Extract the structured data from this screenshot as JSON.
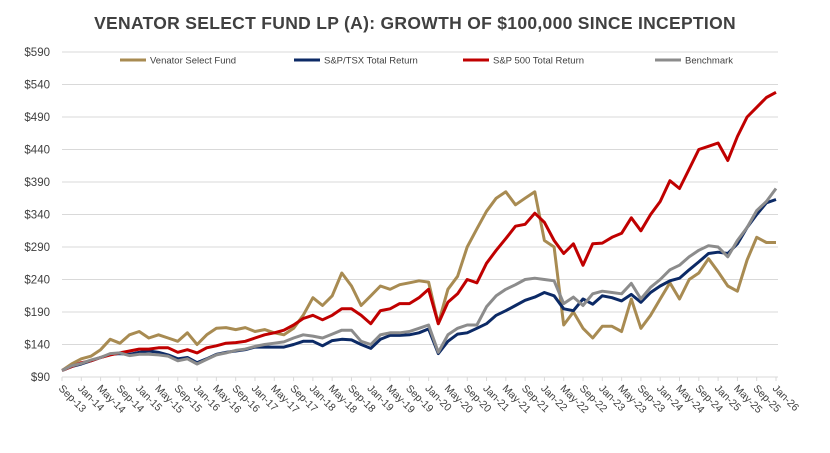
{
  "chart_data": {
    "type": "line",
    "title": "VENATOR SELECT FUND LP (A):  GROWTH OF $100,000 SINCE INCEPTION",
    "xlabel": "",
    "ylabel": "",
    "ylim": [
      90,
      590
    ],
    "y_ticks": [
      "$90",
      "$140",
      "$190",
      "$240",
      "$290",
      "$340",
      "$390",
      "$440",
      "$490",
      "$540",
      "$590"
    ],
    "y_tick_values": [
      90,
      140,
      190,
      240,
      290,
      340,
      390,
      440,
      490,
      540,
      590
    ],
    "x_tick_labels": [
      "Sep-13",
      "Jan-14",
      "May-14",
      "Sep-14",
      "Jan-15",
      "May-15",
      "Sep-15",
      "Jan-16",
      "May-16",
      "Sep-16",
      "Jan-17",
      "May-17",
      "Sep-17",
      "Jan-18",
      "May-18",
      "Sep-18",
      "Jan-19",
      "May-19",
      "Sep-19",
      "Jan-20",
      "May-20",
      "Sep-20",
      "Jan-21",
      "May-21",
      "Sep-21",
      "Jan-22",
      "May-22",
      "Sep-22",
      "Jan-23",
      "May-23",
      "Sep-23",
      "Jan-24",
      "May-24",
      "Sep-24",
      "Jan-25",
      "May-25",
      "Sep-25",
      "Jan-26"
    ],
    "x_interval_months": 2,
    "x_start": "Sep-13",
    "x_end": "Jan-26",
    "grid": "horizontal",
    "legend_position": "top",
    "series": [
      {
        "name": "Venator Select Fund",
        "color": "#A88B52",
        "values": [
          100,
          110,
          118,
          122,
          132,
          148,
          142,
          155,
          160,
          150,
          155,
          150,
          145,
          158,
          140,
          155,
          165,
          166,
          163,
          166,
          160,
          163,
          158,
          155,
          165,
          185,
          212,
          200,
          215,
          250,
          230,
          200,
          215,
          230,
          225,
          232,
          235,
          238,
          236,
          172,
          225,
          245,
          290,
          318,
          345,
          365,
          375,
          355,
          365,
          375,
          300,
          290,
          170,
          190,
          165,
          150,
          168,
          168,
          160,
          210,
          165,
          185,
          210,
          235,
          210,
          240,
          250,
          272,
          252,
          230,
          222,
          270,
          305,
          297,
          297
        ]
      },
      {
        "name": "S&P/TSX Total Return",
        "color": "#0C2A66",
        "values": [
          100,
          106,
          110,
          115,
          120,
          125,
          126,
          125,
          128,
          130,
          128,
          124,
          118,
          120,
          112,
          118,
          125,
          128,
          130,
          132,
          136,
          136,
          136,
          136,
          140,
          145,
          145,
          138,
          146,
          148,
          147,
          140,
          134,
          148,
          154,
          154,
          155,
          158,
          164,
          126,
          145,
          156,
          158,
          165,
          172,
          185,
          192,
          200,
          208,
          213,
          220,
          215,
          195,
          192,
          210,
          202,
          215,
          212,
          207,
          217,
          205,
          220,
          230,
          238,
          242,
          255,
          267,
          280,
          282,
          280,
          295,
          320,
          340,
          358,
          363
        ]
      },
      {
        "name": "S&P 500 Total Return",
        "color": "#C00000",
        "values": [
          100,
          106,
          112,
          115,
          120,
          124,
          127,
          130,
          133,
          133,
          135,
          135,
          128,
          132,
          127,
          135,
          138,
          142,
          143,
          145,
          150,
          155,
          158,
          162,
          170,
          180,
          185,
          178,
          185,
          195,
          195,
          185,
          172,
          192,
          195,
          203,
          203,
          212,
          225,
          172,
          205,
          218,
          240,
          235,
          265,
          285,
          303,
          322,
          325,
          342,
          328,
          300,
          280,
          295,
          262,
          295,
          296,
          305,
          311,
          335,
          315,
          340,
          360,
          392,
          380,
          410,
          440,
          445,
          450,
          423,
          460,
          490,
          505,
          520,
          528
        ]
      },
      {
        "name": "Benchmark",
        "color": "#8C8C8C",
        "values": [
          100,
          107,
          111,
          116,
          120,
          126,
          127,
          123,
          125,
          125,
          124,
          122,
          115,
          118,
          110,
          117,
          124,
          127,
          131,
          133,
          137,
          140,
          142,
          144,
          150,
          155,
          153,
          150,
          156,
          162,
          162,
          145,
          140,
          155,
          158,
          158,
          160,
          165,
          170,
          128,
          155,
          165,
          170,
          170,
          198,
          215,
          225,
          232,
          240,
          242,
          240,
          238,
          203,
          213,
          200,
          218,
          222,
          220,
          218,
          234,
          210,
          228,
          240,
          255,
          262,
          275,
          285,
          292,
          290,
          275,
          300,
          320,
          346,
          360,
          380
        ]
      }
    ]
  }
}
